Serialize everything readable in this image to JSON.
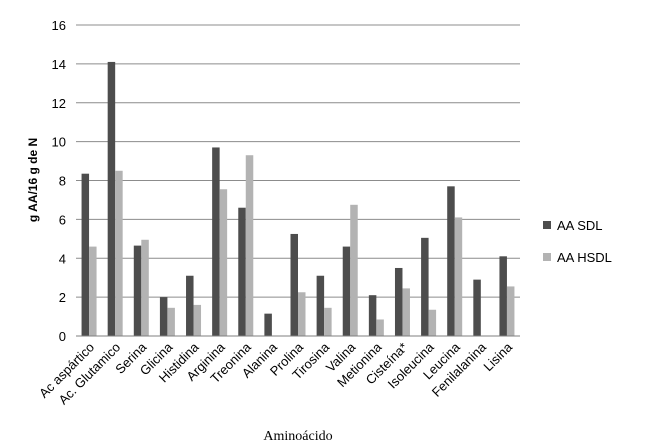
{
  "chart_data": {
    "type": "bar",
    "categories": [
      "Ac aspártico",
      "Ac. Glutamico",
      "Serina",
      "Glicina",
      "Histidina",
      "Arginina",
      "Treonina",
      "Alanina",
      "Prolina",
      "Tirosina",
      "Valina",
      "Metionina",
      "Cisteína*",
      "Isoleucina",
      "Leucina",
      "Fenilalanina",
      "Lisina"
    ],
    "series": [
      {
        "name": "AA SDL",
        "color": "#4d4d4d",
        "values": [
          8.35,
          14.1,
          4.65,
          2.0,
          3.1,
          9.7,
          6.6,
          1.15,
          5.25,
          3.1,
          4.6,
          2.1,
          3.5,
          5.05,
          7.7,
          2.9,
          4.1
        ]
      },
      {
        "name": "AA HSDL",
        "color": "#b3b3b3",
        "values": [
          4.6,
          8.5,
          4.95,
          1.45,
          1.6,
          7.55,
          9.3,
          0,
          2.25,
          1.45,
          6.75,
          0.85,
          2.45,
          1.35,
          6.1,
          0,
          2.55
        ]
      }
    ],
    "yticks": [
      "0",
      "2",
      "4",
      "6",
      "8",
      "10",
      "12",
      "14",
      "16"
    ],
    "ylim": [
      0,
      16
    ],
    "ylabel": "g AA/16  g de N",
    "xlabel": "Aminoácido",
    "grid": true,
    "legend_position": "right"
  }
}
